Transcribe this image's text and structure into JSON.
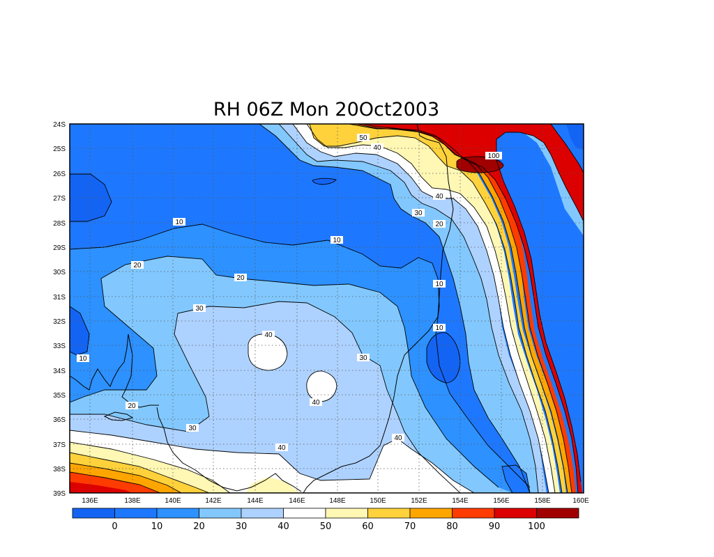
{
  "title": "RH 06Z Mon 20Oct2003",
  "lat_labels": [
    "24S",
    "25S",
    "26S",
    "27S",
    "28S",
    "29S",
    "30S",
    "31S",
    "32S",
    "33S",
    "34S",
    "35S",
    "36S",
    "37S",
    "38S",
    "39S"
  ],
  "lon_labels": [
    "136E",
    "138E",
    "140E",
    "142E",
    "144E",
    "146E",
    "148E",
    "150E",
    "152E",
    "154E",
    "156E",
    "158E",
    "160E"
  ],
  "colorbar": {
    "colors": [
      "#1464f4",
      "#1e78ff",
      "#2d91ff",
      "#82c8ff",
      "#aed2ff",
      "#ffffff",
      "#fff7b4",
      "#ffd23c",
      "#ffa500",
      "#ff3c00",
      "#dc0000",
      "#a00000"
    ],
    "labels": [
      "0",
      "10",
      "20",
      "30",
      "40",
      "50",
      "60",
      "70",
      "80",
      "90",
      "100"
    ]
  },
  "contour_labels": [
    {
      "text": "10"
    },
    {
      "text": "10"
    },
    {
      "text": "10"
    },
    {
      "text": "10"
    },
    {
      "text": "10"
    },
    {
      "text": "20"
    },
    {
      "text": "20"
    },
    {
      "text": "20"
    },
    {
      "text": "20"
    },
    {
      "text": "30"
    },
    {
      "text": "30"
    },
    {
      "text": "30"
    },
    {
      "text": "30"
    },
    {
      "text": "40"
    },
    {
      "text": "40"
    },
    {
      "text": "40"
    },
    {
      "text": "40"
    },
    {
      "text": "40"
    },
    {
      "text": "40"
    },
    {
      "text": "50"
    },
    {
      "text": "100"
    }
  ]
}
